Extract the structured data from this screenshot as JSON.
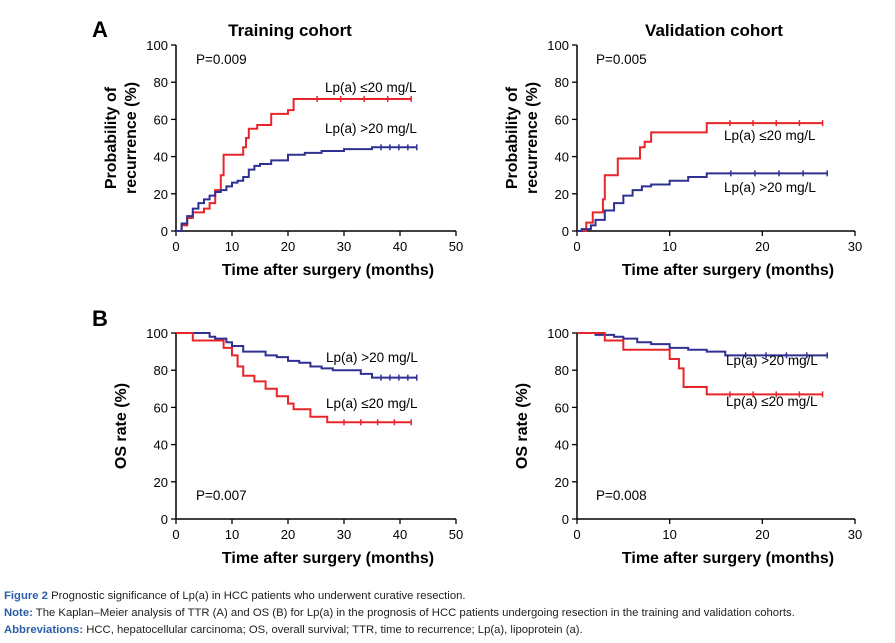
{
  "panel_letters": [
    "A",
    "B"
  ],
  "column_titles": [
    "Training cohort",
    "Validation cohort"
  ],
  "chart_data": [
    {
      "type": "line",
      "panel": "A",
      "title": "Training cohort",
      "xlabel": "Time after surgery (months)",
      "ylabel": "Probability of recurrence (%)",
      "xlim": [
        0,
        50
      ],
      "ylim": [
        0,
        100
      ],
      "xticks": [
        0,
        10,
        20,
        30,
        40,
        50
      ],
      "yticks": [
        0,
        20,
        40,
        60,
        80,
        100
      ],
      "annotation": "P=0.009",
      "step": true,
      "series": [
        {
          "name": "Lp(a) ≤20 mg/L",
          "color": "#e8262a",
          "x": [
            0,
            1,
            2,
            3,
            5,
            6,
            7,
            8,
            8.5,
            12,
            12.5,
            13,
            14.5,
            17,
            20,
            21,
            42
          ],
          "y": [
            0,
            3,
            7,
            10,
            12,
            15,
            22,
            30,
            41,
            45,
            50,
            55,
            57,
            63,
            65,
            71,
            71
          ]
        },
        {
          "name": "Lp(a) >20 mg/L",
          "color": "#2e3192",
          "x": [
            0,
            1,
            2,
            3,
            4,
            5,
            6,
            7,
            8,
            9,
            10,
            11,
            12,
            13,
            14,
            15,
            17,
            20,
            23,
            26,
            30,
            35,
            43
          ],
          "y": [
            0,
            4,
            8,
            12,
            15,
            17,
            19,
            21,
            22,
            24,
            26,
            27,
            29,
            33,
            35,
            36,
            38,
            41,
            42,
            43,
            44,
            45,
            45
          ]
        }
      ],
      "legend": "inline"
    },
    {
      "type": "line",
      "panel": "A",
      "title": "Validation cohort",
      "xlabel": "Time after surgery (months)",
      "ylabel": "Probability of recurrence (%)",
      "xlim": [
        0,
        30
      ],
      "ylim": [
        0,
        100
      ],
      "xticks": [
        0,
        10,
        20,
        30
      ],
      "yticks": [
        0,
        20,
        40,
        60,
        80,
        100
      ],
      "annotation": "P=0.005",
      "step": true,
      "series": [
        {
          "name": "Lp(a) ≤20 mg/L",
          "color": "#e8262a",
          "x": [
            0,
            1,
            1.7,
            2.8,
            3,
            4.4,
            6.8,
            7.3,
            8,
            14,
            26.5
          ],
          "y": [
            0,
            4.5,
            10,
            17,
            30,
            39,
            45,
            48,
            53,
            58,
            58
          ]
        },
        {
          "name": "Lp(a) >20 mg/L",
          "color": "#2e3192",
          "x": [
            0,
            0.5,
            1.5,
            2,
            3,
            4,
            5,
            6,
            7,
            8,
            10,
            12,
            14,
            27
          ],
          "y": [
            0,
            1,
            3,
            6,
            11,
            15,
            19,
            22,
            24,
            25,
            27,
            29,
            31,
            31
          ]
        }
      ],
      "legend": "inline"
    },
    {
      "type": "line",
      "panel": "B",
      "title": "",
      "xlabel": "Time after surgery (months)",
      "ylabel": "OS rate (%)",
      "xlim": [
        0,
        50
      ],
      "ylim": [
        0,
        100
      ],
      "xticks": [
        0,
        10,
        20,
        30,
        40,
        50
      ],
      "yticks": [
        0,
        20,
        40,
        60,
        80,
        100
      ],
      "annotation": "P=0.007",
      "step": true,
      "series": [
        {
          "name": "Lp(a) >20 mg/L",
          "color": "#2e3192",
          "x": [
            0,
            6,
            7,
            9,
            10,
            12,
            16,
            18,
            20,
            22,
            24,
            26,
            28,
            33,
            35,
            43
          ],
          "y": [
            100,
            98,
            97,
            95,
            93,
            90,
            88,
            87,
            85,
            84,
            82,
            81,
            80,
            78,
            76,
            76
          ]
        },
        {
          "name": "Lp(a) ≤20 mg/L",
          "color": "#e8262a",
          "x": [
            0,
            3,
            8.5,
            10,
            11,
            12,
            14,
            16,
            18,
            20,
            21,
            24,
            27,
            42
          ],
          "y": [
            100,
            96,
            92,
            88,
            82,
            77,
            74,
            70,
            66,
            62,
            59,
            55,
            52,
            52
          ]
        }
      ],
      "legend": "inline"
    },
    {
      "type": "line",
      "panel": "B",
      "title": "",
      "xlabel": "Time after surgery (months)",
      "ylabel": "OS rate (%)",
      "xlim": [
        0,
        30
      ],
      "ylim": [
        0,
        100
      ],
      "xticks": [
        0,
        10,
        20,
        30
      ],
      "yticks": [
        0,
        20,
        40,
        60,
        80,
        100
      ],
      "annotation": "P=0.008",
      "step": true,
      "series": [
        {
          "name": "Lp(a) >20 mg/L",
          "color": "#2e3192",
          "x": [
            0,
            2,
            4,
            5,
            6.5,
            8,
            10,
            12,
            14,
            16,
            27
          ],
          "y": [
            100,
            99,
            98,
            97,
            95,
            94,
            92,
            91,
            90,
            88,
            88
          ]
        },
        {
          "name": "Lp(a) ≤20 mg/L",
          "color": "#e8262a",
          "x": [
            0,
            3,
            5,
            10,
            11,
            11.5,
            14,
            26.5
          ],
          "y": [
            100,
            96,
            91,
            86,
            81,
            71,
            67,
            67
          ]
        }
      ],
      "legend": "inline"
    }
  ],
  "caption": {
    "figure_label": "Figure 2",
    "figure_text": " Prognostic significance of Lp(a) in HCC patients who underwent curative resection.",
    "note_label": "Note:",
    "note_text": " The Kaplan–Meier analysis of TTR (A) and OS (B) for Lp(a) in the prognosis of HCC patients undergoing resection in the training and validation cohorts.",
    "abbr_label": "Abbreviations:",
    "abbr_text": " HCC, hepatocellular carcinoma; OS, overall survival; TTR, time to recurrence; Lp(a), lipoprotein (a)."
  }
}
